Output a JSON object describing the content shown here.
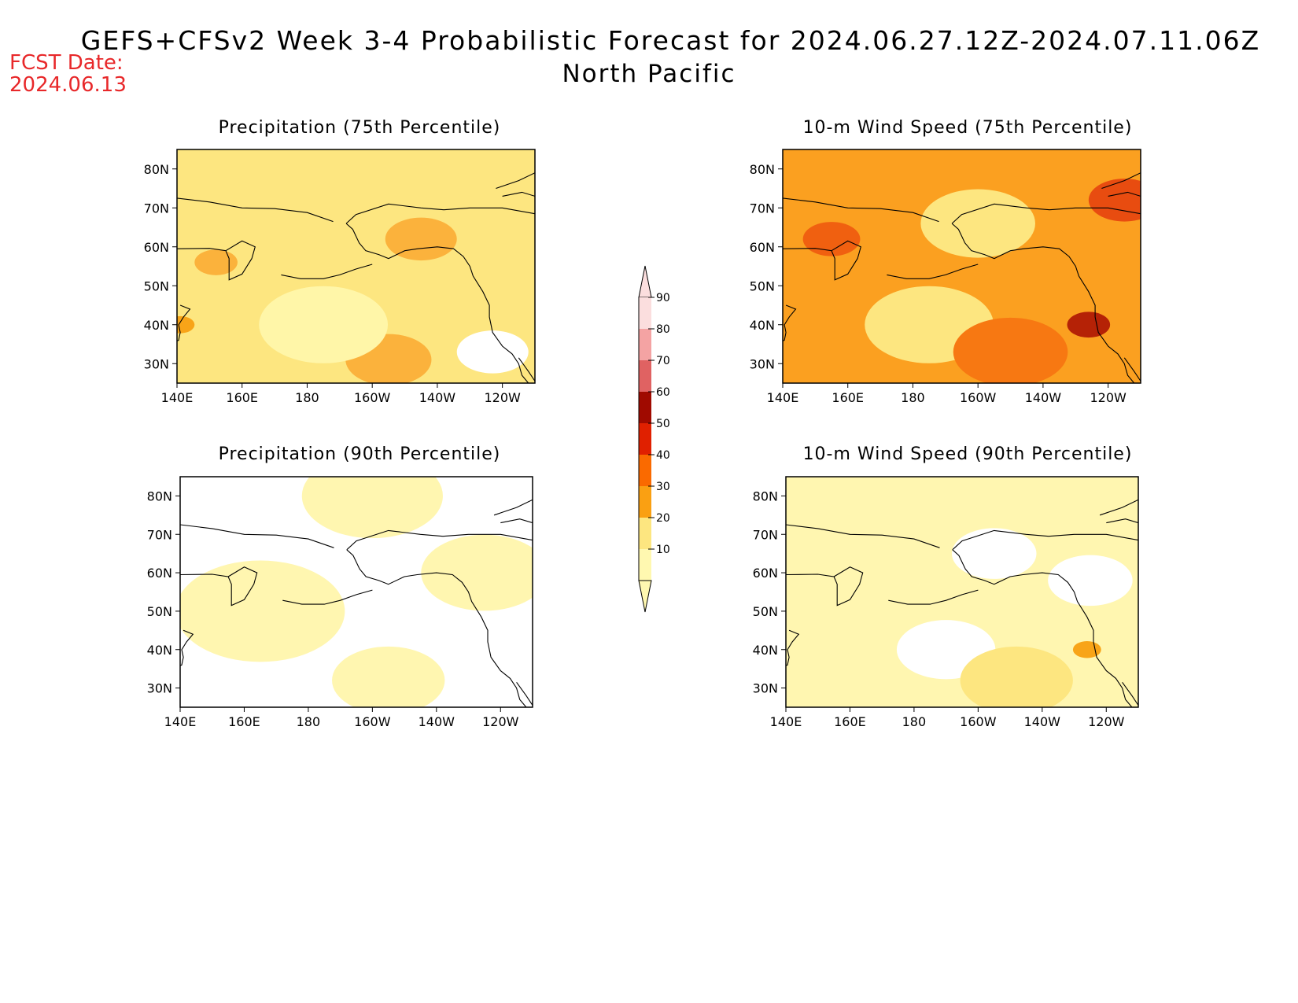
{
  "header": {
    "title": "GEFS+CFSv2 Week 3-4 Probabilistic Forecast for 2024.06.27.12Z-2024.07.11.06Z",
    "subtitle": "North Pacific",
    "fcst_label": "FCST Date:",
    "fcst_date": "2024.06.13"
  },
  "axes": {
    "x_ticks": [
      "140E",
      "160E",
      "180",
      "160W",
      "140W",
      "120W"
    ],
    "y_ticks": [
      "80N",
      "70N",
      "60N",
      "50N",
      "40N",
      "30N"
    ]
  },
  "panels": [
    {
      "id": "precip75",
      "title": "Precipitation (75th Percentile)",
      "base": "#fde680",
      "blobs": [
        {
          "lon": 205,
          "lat": 31,
          "r": 6,
          "c": "#fbb23c"
        },
        {
          "lon": 215,
          "lat": 62,
          "r": 5,
          "c": "#fbb23c"
        },
        {
          "lon": 185,
          "lat": 40,
          "r": 9,
          "c": "#fff6a8"
        },
        {
          "lon": 237,
          "lat": 33,
          "r": 5,
          "c": "#ffffff"
        },
        {
          "lon": 152,
          "lat": 56,
          "r": 3,
          "c": "#fbb23c"
        },
        {
          "lon": 141,
          "lat": 40,
          "r": 2,
          "c": "#f8a418"
        }
      ]
    },
    {
      "id": "precip90",
      "title": "Precipitation (90th Percentile)",
      "base": "#ffffff",
      "blobs": [
        {
          "lon": 165,
          "lat": 50,
          "r": 12,
          "c": "#fff6b0"
        },
        {
          "lon": 205,
          "lat": 32,
          "r": 8,
          "c": "#fff6b0"
        },
        {
          "lon": 200,
          "lat": 80,
          "r": 10,
          "c": "#fff6b0"
        },
        {
          "lon": 235,
          "lat": 60,
          "r": 9,
          "c": "#fff6b0"
        }
      ]
    },
    {
      "id": "wind75",
      "title": "10-m Wind Speed (75th Percentile)",
      "base": "#fba020",
      "blobs": [
        {
          "lon": 185,
          "lat": 40,
          "r": 9,
          "c": "#fde680"
        },
        {
          "lon": 210,
          "lat": 33,
          "r": 8,
          "c": "#f77812"
        },
        {
          "lon": 234,
          "lat": 40,
          "r": 3,
          "c": "#b52206"
        },
        {
          "lon": 200,
          "lat": 66,
          "r": 8,
          "c": "#fde680"
        },
        {
          "lon": 155,
          "lat": 62,
          "r": 4,
          "c": "#f06010"
        },
        {
          "lon": 245,
          "lat": 72,
          "r": 5,
          "c": "#e84c10"
        }
      ]
    },
    {
      "id": "wind90",
      "title": "10-m Wind Speed (90th Percentile)",
      "base": "#fff6b0",
      "blobs": [
        {
          "lon": 190,
          "lat": 40,
          "r": 7,
          "c": "#ffffff"
        },
        {
          "lon": 212,
          "lat": 32,
          "r": 8,
          "c": "#fde680"
        },
        {
          "lon": 234,
          "lat": 40,
          "r": 2,
          "c": "#f8a418"
        },
        {
          "lon": 205,
          "lat": 65,
          "r": 6,
          "c": "#ffffff"
        },
        {
          "lon": 235,
          "lat": 58,
          "r": 6,
          "c": "#ffffff"
        }
      ]
    }
  ],
  "colorbar": {
    "labels": [
      "90",
      "80",
      "70",
      "60",
      "50",
      "40",
      "30",
      "20",
      "10"
    ],
    "colors": [
      "#fbdede",
      "#f4a3a3",
      "#e06262",
      "#a00a00",
      "#e02000",
      "#fa6a00",
      "#faa012",
      "#fde680",
      "#fff8b0"
    ]
  },
  "chart_data": [
    {
      "type": "heatmap",
      "title": "Precipitation (75th Percentile)",
      "x_range": [
        "140E",
        "110W"
      ],
      "y_range": [
        "25N",
        "85N"
      ],
      "legend": "center colorbar"
    },
    {
      "type": "heatmap",
      "title": "10-m Wind Speed (75th Percentile)",
      "x_range": [
        "140E",
        "110W"
      ],
      "y_range": [
        "25N",
        "85N"
      ],
      "legend": "center colorbar"
    },
    {
      "type": "heatmap",
      "title": "Precipitation (90th Percentile)",
      "x_range": [
        "140E",
        "110W"
      ],
      "y_range": [
        "25N",
        "85N"
      ],
      "legend": "center colorbar"
    },
    {
      "type": "heatmap",
      "title": "10-m Wind Speed (90th Percentile)",
      "x_range": [
        "140E",
        "110W"
      ],
      "y_range": [
        "25N",
        "85N"
      ],
      "legend": "center colorbar"
    }
  ]
}
